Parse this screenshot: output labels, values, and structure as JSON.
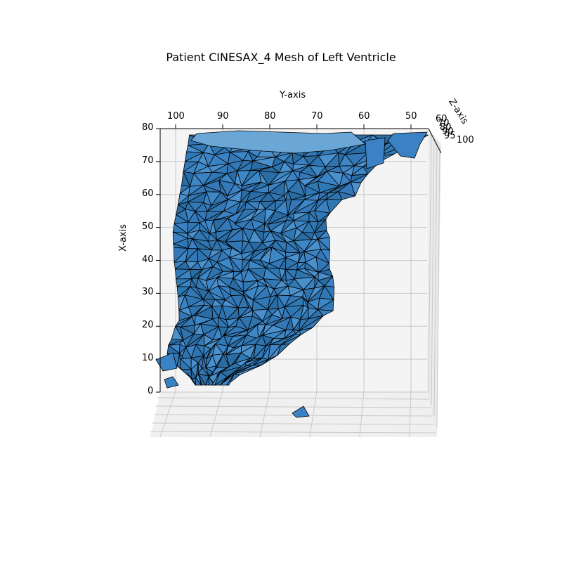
{
  "chart_data": {
    "type": "3d-surface-mesh",
    "title": "Patient CINESAX_4 Mesh of Left Ventricle",
    "xlabel": "X-axis",
    "ylabel": "Y-axis",
    "zlabel": "Z-axis",
    "x_ticks": [
      "0",
      "10",
      "20",
      "30",
      "40",
      "50",
      "60",
      "70",
      "80"
    ],
    "y_ticks": [
      "100",
      "90",
      "80",
      "70",
      "60",
      "50"
    ],
    "z_ticks": [
      "60",
      "70",
      "80",
      "90",
      "95",
      "100"
    ],
    "xlim": [
      0,
      80
    ],
    "ylim": [
      105,
      46
    ],
    "grid": true,
    "face_color": "#3b82c4",
    "edge_color": "#000000",
    "pane_color": "#f2f2f2"
  }
}
